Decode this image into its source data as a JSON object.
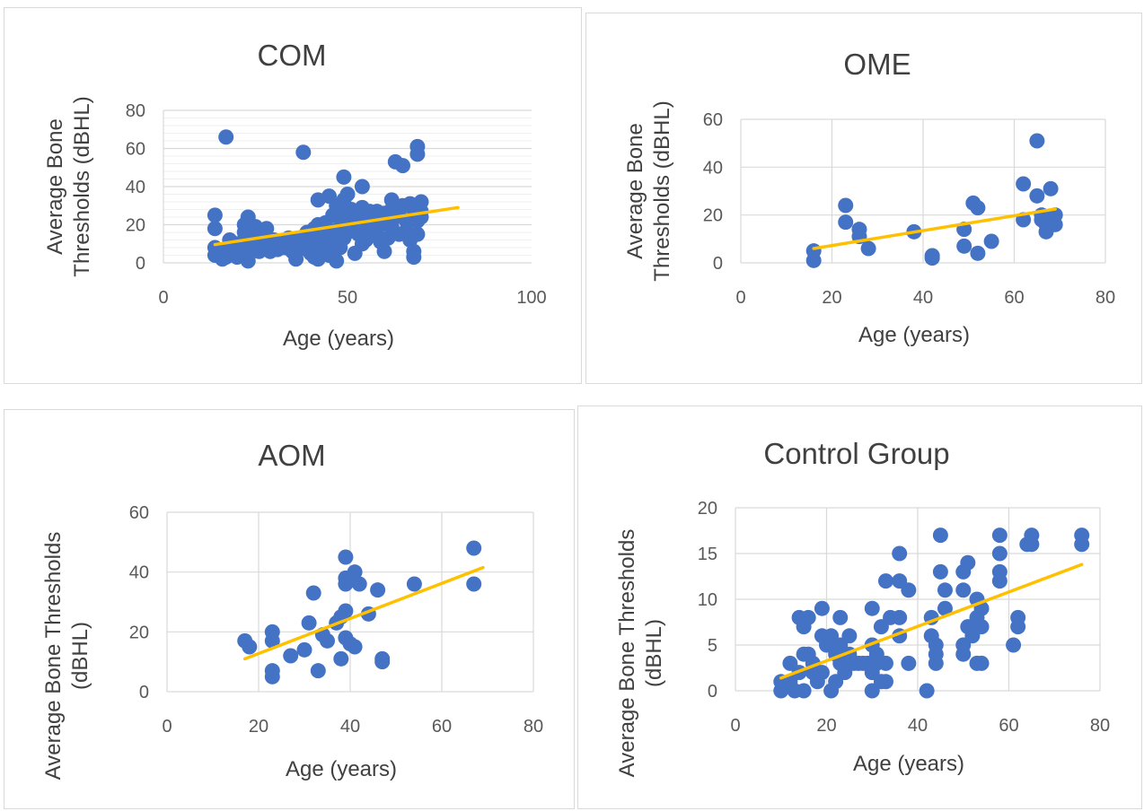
{
  "colors": {
    "points": "#4472C4",
    "trend": "#FFC000",
    "grid": "#d9d9d9",
    "minorGrid": "#efefef"
  },
  "chart_data": [
    {
      "type": "scatter",
      "title": "COM",
      "xlabel": "Age (years)",
      "ylabel": [
        "Average Bone",
        "Thresholds (dBHL)"
      ],
      "xlim": [
        0,
        100
      ],
      "ylim": [
        0,
        80
      ],
      "xticks": [
        0,
        50,
        100
      ],
      "yticks": [
        0,
        20,
        40,
        60,
        80
      ],
      "grid": "major-and-minor-horizontal",
      "trendline": {
        "x": [
          14,
          80
        ],
        "y": [
          9.6,
          29
        ]
      },
      "points": [
        [
          14,
          25
        ],
        [
          14,
          18
        ],
        [
          14,
          8
        ],
        [
          14,
          4
        ],
        [
          15,
          6
        ],
        [
          16,
          2
        ],
        [
          17,
          66
        ],
        [
          17,
          3
        ],
        [
          18,
          12
        ],
        [
          18,
          8
        ],
        [
          19,
          5
        ],
        [
          20,
          3
        ],
        [
          20,
          10
        ],
        [
          21,
          7
        ],
        [
          22,
          20
        ],
        [
          22,
          16
        ],
        [
          23,
          24
        ],
        [
          23,
          14
        ],
        [
          23,
          1
        ],
        [
          24,
          9
        ],
        [
          24,
          6
        ],
        [
          25,
          19
        ],
        [
          25,
          12
        ],
        [
          26,
          17
        ],
        [
          26,
          6
        ],
        [
          27,
          11
        ],
        [
          27,
          8
        ],
        [
          28,
          18
        ],
        [
          28,
          14
        ],
        [
          29,
          9
        ],
        [
          29,
          6
        ],
        [
          30,
          12
        ],
        [
          31,
          7
        ],
        [
          32,
          10
        ],
        [
          33,
          8
        ],
        [
          34,
          13
        ],
        [
          35,
          11
        ],
        [
          35,
          6
        ],
        [
          36,
          2
        ],
        [
          37,
          13
        ],
        [
          38,
          10
        ],
        [
          38,
          58
        ],
        [
          39,
          16
        ],
        [
          39,
          7
        ],
        [
          40,
          12
        ],
        [
          40,
          5
        ],
        [
          41,
          18
        ],
        [
          41,
          3
        ],
        [
          42,
          33
        ],
        [
          42,
          20
        ],
        [
          42,
          2
        ],
        [
          43,
          14
        ],
        [
          43,
          9
        ],
        [
          44,
          21
        ],
        [
          44,
          6
        ],
        [
          45,
          35
        ],
        [
          45,
          15
        ],
        [
          45,
          4
        ],
        [
          46,
          25
        ],
        [
          46,
          10
        ],
        [
          47,
          30
        ],
        [
          47,
          17
        ],
        [
          47,
          1
        ],
        [
          48,
          27
        ],
        [
          48,
          19
        ],
        [
          48,
          8
        ],
        [
          49,
          45
        ],
        [
          49,
          33
        ],
        [
          49,
          22
        ],
        [
          49,
          13
        ],
        [
          50,
          36
        ],
        [
          50,
          26
        ],
        [
          50,
          16
        ],
        [
          51,
          28
        ],
        [
          51,
          20
        ],
        [
          52,
          25
        ],
        [
          52,
          5
        ],
        [
          53,
          23
        ],
        [
          53,
          15
        ],
        [
          54,
          40
        ],
        [
          54,
          29
        ],
        [
          54,
          10
        ],
        [
          55,
          21
        ],
        [
          55,
          12
        ],
        [
          56,
          27
        ],
        [
          56,
          16
        ],
        [
          57,
          24
        ],
        [
          57,
          18
        ],
        [
          58,
          27
        ],
        [
          58,
          14
        ],
        [
          59,
          20
        ],
        [
          59,
          11
        ],
        [
          60,
          26
        ],
        [
          60,
          6
        ],
        [
          61,
          22
        ],
        [
          61,
          13
        ],
        [
          62,
          33
        ],
        [
          62,
          28
        ],
        [
          62,
          19
        ],
        [
          63,
          53
        ],
        [
          63,
          24
        ],
        [
          64,
          27
        ],
        [
          64,
          15
        ],
        [
          65,
          51
        ],
        [
          65,
          30
        ],
        [
          66,
          22
        ],
        [
          66,
          17
        ],
        [
          67,
          31
        ],
        [
          67,
          12
        ],
        [
          68,
          6
        ],
        [
          68,
          3
        ],
        [
          68,
          28
        ],
        [
          69,
          61
        ],
        [
          69,
          57
        ],
        [
          69,
          22
        ],
        [
          69,
          15
        ],
        [
          70,
          32
        ],
        [
          70,
          27
        ],
        [
          70,
          24
        ]
      ]
    },
    {
      "type": "scatter",
      "title": "OME",
      "xlabel": "Age (years)",
      "ylabel": [
        "Average Bone",
        "Thresholds (dBHL)"
      ],
      "xlim": [
        0,
        80
      ],
      "ylim": [
        0,
        60
      ],
      "xticks": [
        0,
        20,
        40,
        60,
        80
      ],
      "yticks": [
        0,
        20,
        40,
        60
      ],
      "grid": "major-both",
      "trendline": {
        "x": [
          16,
          69
        ],
        "y": [
          6,
          22.5
        ]
      },
      "points": [
        [
          16,
          5
        ],
        [
          16,
          1
        ],
        [
          23,
          24
        ],
        [
          23,
          17
        ],
        [
          26,
          14
        ],
        [
          26,
          11
        ],
        [
          28,
          6
        ],
        [
          38,
          13
        ],
        [
          42,
          3
        ],
        [
          42,
          2
        ],
        [
          49,
          14
        ],
        [
          49,
          7
        ],
        [
          51,
          25
        ],
        [
          52,
          23
        ],
        [
          52,
          4
        ],
        [
          55,
          9
        ],
        [
          62,
          33
        ],
        [
          62,
          18
        ],
        [
          65,
          51
        ],
        [
          65,
          28
        ],
        [
          66,
          20
        ],
        [
          66,
          18
        ],
        [
          67,
          16
        ],
        [
          67,
          13
        ],
        [
          68,
          31
        ],
        [
          68,
          19
        ],
        [
          69,
          20
        ],
        [
          69,
          16
        ]
      ]
    },
    {
      "type": "scatter",
      "title": "AOM",
      "xlabel": "Age (years)",
      "ylabel": [
        "Average Bone Thresholds",
        "(dBHL)"
      ],
      "xlim": [
        0,
        80
      ],
      "ylim": [
        0,
        60
      ],
      "xticks": [
        0,
        20,
        40,
        60,
        80
      ],
      "yticks": [
        0,
        20,
        40,
        60
      ],
      "grid": "major-both",
      "trendline": {
        "x": [
          17,
          69
        ],
        "y": [
          11,
          41.5
        ]
      },
      "points": [
        [
          17,
          17
        ],
        [
          18,
          15
        ],
        [
          23,
          20
        ],
        [
          23,
          17
        ],
        [
          23,
          7
        ],
        [
          23,
          5
        ],
        [
          27,
          12
        ],
        [
          30,
          14
        ],
        [
          31,
          23
        ],
        [
          32,
          33
        ],
        [
          33,
          7
        ],
        [
          34,
          19
        ],
        [
          35,
          17
        ],
        [
          37,
          23
        ],
        [
          38,
          11
        ],
        [
          38,
          25
        ],
        [
          39,
          45
        ],
        [
          39,
          38
        ],
        [
          39,
          36
        ],
        [
          39,
          27
        ],
        [
          39,
          18
        ],
        [
          40,
          16
        ],
        [
          41,
          40
        ],
        [
          41,
          15
        ],
        [
          42,
          36
        ],
        [
          44,
          26
        ],
        [
          46,
          34
        ],
        [
          47,
          11
        ],
        [
          47,
          10
        ],
        [
          54,
          36
        ],
        [
          67,
          48
        ],
        [
          67,
          36
        ]
      ]
    },
    {
      "type": "scatter",
      "title": "Control Group",
      "xlabel": "Age (years)",
      "ylabel": [
        "Average Bone Thresholds",
        "(dBHL)"
      ],
      "xlim": [
        0,
        80
      ],
      "ylim": [
        0,
        20
      ],
      "xticks": [
        0,
        20,
        40,
        60,
        80
      ],
      "yticks": [
        0,
        5,
        10,
        15,
        20
      ],
      "grid": "major-both",
      "trendline": {
        "x": [
          10,
          76
        ],
        "y": [
          1.4,
          13.8
        ]
      },
      "points": [
        [
          10,
          1
        ],
        [
          10,
          0
        ],
        [
          12,
          3
        ],
        [
          12,
          1
        ],
        [
          13,
          0
        ],
        [
          14,
          2
        ],
        [
          14,
          8
        ],
        [
          15,
          4
        ],
        [
          15,
          0
        ],
        [
          15,
          7
        ],
        [
          16,
          8
        ],
        [
          16,
          4
        ],
        [
          17,
          3
        ],
        [
          17,
          2
        ],
        [
          18,
          1
        ],
        [
          19,
          9
        ],
        [
          19,
          6
        ],
        [
          19,
          2
        ],
        [
          20,
          5
        ],
        [
          21,
          6
        ],
        [
          21,
          0
        ],
        [
          22,
          4
        ],
        [
          22,
          1
        ],
        [
          23,
          8
        ],
        [
          23,
          5
        ],
        [
          23,
          3
        ],
        [
          24,
          2
        ],
        [
          25,
          6
        ],
        [
          25,
          4
        ],
        [
          26,
          3
        ],
        [
          27,
          3
        ],
        [
          28,
          3
        ],
        [
          29,
          3
        ],
        [
          30,
          9
        ],
        [
          30,
          5
        ],
        [
          30,
          2
        ],
        [
          30,
          0
        ],
        [
          31,
          4
        ],
        [
          31,
          3
        ],
        [
          32,
          7
        ],
        [
          32,
          1
        ],
        [
          33,
          12
        ],
        [
          33,
          3
        ],
        [
          33,
          1
        ],
        [
          34,
          8
        ],
        [
          36,
          15
        ],
        [
          36,
          12
        ],
        [
          36,
          8
        ],
        [
          36,
          6
        ],
        [
          38,
          11
        ],
        [
          38,
          3
        ],
        [
          42,
          0
        ],
        [
          43,
          8
        ],
        [
          43,
          6
        ],
        [
          44,
          5
        ],
        [
          44,
          4
        ],
        [
          44,
          3
        ],
        [
          45,
          17
        ],
        [
          45,
          13
        ],
        [
          46,
          11
        ],
        [
          46,
          9
        ],
        [
          50,
          13
        ],
        [
          50,
          11
        ],
        [
          50,
          5
        ],
        [
          50,
          4
        ],
        [
          51,
          14
        ],
        [
          51,
          7
        ],
        [
          52,
          6
        ],
        [
          53,
          10
        ],
        [
          53,
          8
        ],
        [
          53,
          3
        ],
        [
          54,
          9
        ],
        [
          54,
          7
        ],
        [
          54,
          3
        ],
        [
          58,
          17
        ],
        [
          58,
          15
        ],
        [
          58,
          13
        ],
        [
          58,
          12
        ],
        [
          61,
          5
        ],
        [
          62,
          8
        ],
        [
          62,
          7
        ],
        [
          64,
          16
        ],
        [
          65,
          17
        ],
        [
          65,
          16
        ],
        [
          76,
          17
        ],
        [
          76,
          16
        ]
      ]
    }
  ]
}
